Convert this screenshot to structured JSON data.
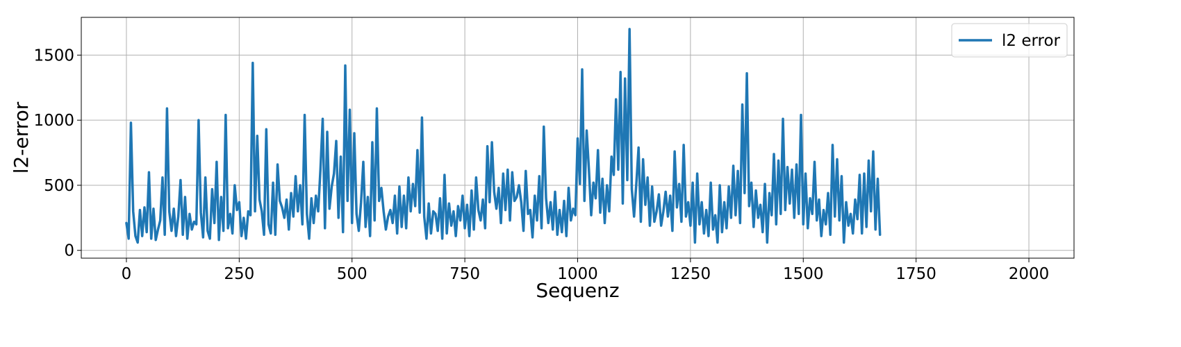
{
  "chart_data": {
    "type": "line",
    "title": "",
    "xlabel": "Sequenz",
    "ylabel": "l2-error",
    "xlim": [
      -100,
      2100
    ],
    "ylim": [
      -60,
      1790
    ],
    "grid": true,
    "legend_position": "top-right",
    "x_ticks": [
      0,
      250,
      500,
      750,
      1000,
      1250,
      1500,
      1750,
      2000
    ],
    "x_tick_labels": [
      "0",
      "250",
      "500",
      "750",
      "1000",
      "1250",
      "1500",
      "1750",
      "2000"
    ],
    "y_ticks": [
      0,
      500,
      1000,
      1500
    ],
    "y_tick_labels": [
      "0",
      "500",
      "1000",
      "1500"
    ],
    "colors": {
      "series": "#1f77b4",
      "grid": "#b0b0b0",
      "axes": "#000000"
    },
    "series": [
      {
        "name": "l2 error",
        "x_start": 0,
        "x_step": 5,
        "values": [
          210,
          90,
          980,
          300,
          110,
          60,
          310,
          110,
          330,
          140,
          600,
          90,
          320,
          80,
          160,
          230,
          560,
          120,
          1090,
          300,
          150,
          320,
          110,
          260,
          540,
          120,
          410,
          90,
          280,
          160,
          220,
          200,
          1000,
          290,
          100,
          560,
          150,
          90,
          470,
          210,
          680,
          80,
          410,
          150,
          1040,
          170,
          280,
          130,
          500,
          310,
          370,
          110,
          250,
          90,
          300,
          270,
          1440,
          300,
          880,
          390,
          300,
          120,
          930,
          200,
          130,
          520,
          120,
          660,
          380,
          330,
          250,
          390,
          160,
          440,
          260,
          570,
          300,
          500,
          200,
          1040,
          280,
          90,
          400,
          210,
          420,
          300,
          620,
          1010,
          170,
          910,
          320,
          490,
          590,
          840,
          250,
          720,
          140,
          1420,
          380,
          1080,
          210,
          900,
          280,
          150,
          370,
          680,
          180,
          410,
          110,
          830,
          230,
          1090,
          380,
          480,
          300,
          160,
          260,
          310,
          210,
          420,
          130,
          490,
          180,
          420,
          170,
          560,
          300,
          510,
          340,
          770,
          290,
          1020,
          260,
          90,
          360,
          130,
          300,
          280,
          150,
          400,
          90,
          580,
          130,
          360,
          190,
          300,
          110,
          340,
          230,
          420,
          170,
          350,
          110,
          460,
          160,
          560,
          310,
          230,
          390,
          170,
          800,
          370,
          830,
          450,
          320,
          480,
          210,
          590,
          310,
          620,
          230,
          600,
          380,
          410,
          500,
          370,
          150,
          610,
          280,
          310,
          100,
          420,
          230,
          570,
          170,
          950,
          400,
          210,
          370,
          160,
          450,
          120,
          310,
          140,
          380,
          110,
          480,
          230,
          320,
          270,
          860,
          510,
          1390,
          380,
          920,
          620,
          270,
          520,
          400,
          770,
          290,
          550,
          210,
          500,
          300,
          720,
          580,
          1160,
          620,
          1370,
          360,
          1320,
          540,
          1700,
          470,
          260,
          510,
          790,
          220,
          700,
          350,
          560,
          190,
          490,
          220,
          300,
          430,
          190,
          300,
          450,
          260,
          420,
          150,
          760,
          330,
          510,
          220,
          810,
          260,
          370,
          190,
          520,
          60,
          590,
          200,
          370,
          130,
          310,
          110,
          520,
          160,
          270,
          60,
          500,
          140,
          370,
          170,
          490,
          250,
          650,
          270,
          610,
          210,
          1120,
          440,
          1360,
          340,
          520,
          180,
          460,
          250,
          350,
          140,
          510,
          60,
          440,
          270,
          740,
          200,
          690,
          280,
          1010,
          310,
          640,
          360,
          620,
          250,
          660,
          280,
          1040,
          200,
          590,
          170,
          400,
          280,
          680,
          230,
          390,
          110,
          310,
          200,
          440,
          120,
          810,
          260,
          700,
          230,
          570,
          60,
          370,
          190,
          280,
          130,
          390,
          240,
          580,
          130,
          590,
          180,
          690,
          300,
          760,
          160,
          550,
          120
        ]
      }
    ]
  }
}
